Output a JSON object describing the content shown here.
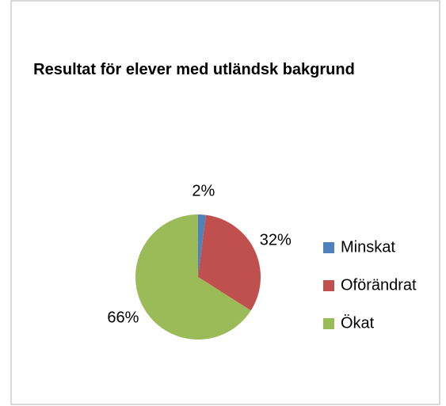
{
  "chart_data": {
    "type": "pie",
    "title": "Resultat för elever med utländsk bakgrund",
    "categories": [
      "Minskat",
      "Oförändrat",
      "Ökat"
    ],
    "values": [
      2,
      32,
      66
    ],
    "value_labels": [
      "2%",
      "32%",
      "66%"
    ],
    "colors": [
      "#4f81bd",
      "#c0504d",
      "#9bbb59"
    ],
    "legend": "right"
  }
}
